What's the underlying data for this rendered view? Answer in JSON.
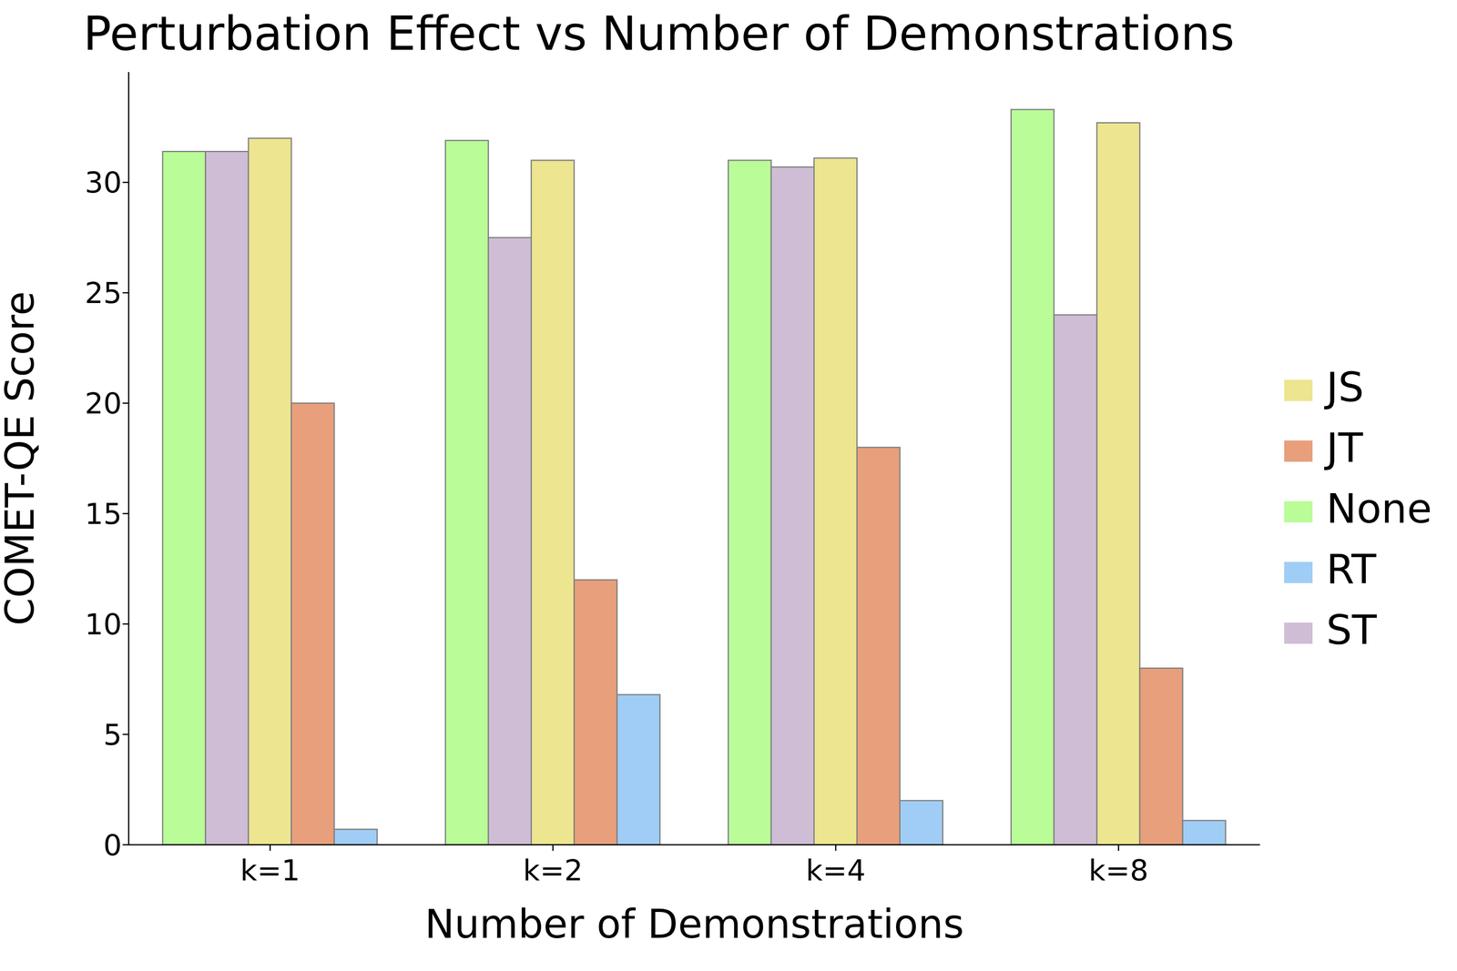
{
  "chart_data": {
    "type": "bar",
    "title": "Perturbation Effect vs Number of Demonstrations",
    "x_label": "Number of Demonstrations",
    "y_label": "COMET-QE Score",
    "categories": [
      "k=1",
      "k=2",
      "k=4",
      "k=8"
    ],
    "series": [
      {
        "name": "None",
        "color": "#b9fc98",
        "values": [
          31.4,
          31.9,
          31.0,
          33.3
        ]
      },
      {
        "name": "ST",
        "color": "#cfbdd6",
        "values": [
          31.4,
          27.5,
          30.7,
          24.0
        ]
      },
      {
        "name": "JS",
        "color": "#ede58f",
        "values": [
          32.0,
          31.0,
          31.1,
          32.7
        ]
      },
      {
        "name": "JT",
        "color": "#e89f7b",
        "values": [
          20.0,
          12.0,
          18.0,
          8.0
        ]
      },
      {
        "name": "RT",
        "color": "#9fcdf5",
        "values": [
          0.7,
          6.8,
          2.0,
          1.1
        ]
      }
    ],
    "ylim": [
      0,
      35
    ],
    "yticks": [
      0,
      5,
      10,
      15,
      20,
      25,
      30
    ],
    "grid": false,
    "legend": "right"
  }
}
